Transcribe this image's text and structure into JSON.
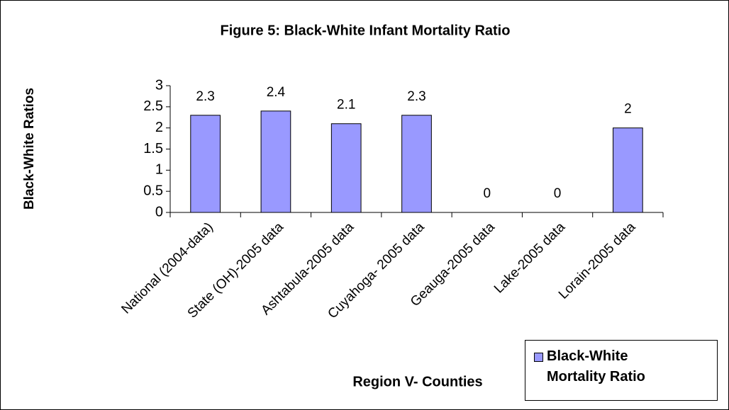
{
  "chart_data": {
    "type": "bar",
    "title": "Figure 5: Black-White Infant Mortality Ratio",
    "y_label": "Black-White Ratios",
    "x_label": "Region V- Counties",
    "categories": [
      "National (2004-data)",
      "State (OH)-2005 data",
      "Ashtabula-2005 data",
      "Cuyahoga- 2005 data",
      "Geauga-2005 data",
      "Lake-2005 data",
      "Lorain-2005 data"
    ],
    "series": [
      {
        "name": "Black-White Mortality Ratio",
        "color": "#9999ff",
        "values": [
          2.3,
          2.4,
          2.1,
          2.3,
          0,
          0,
          2
        ]
      }
    ],
    "ylim": [
      0,
      3
    ],
    "yticks": [
      0,
      0.5,
      1,
      1.5,
      2,
      2.5,
      3
    ],
    "legend": "bottom-right"
  }
}
